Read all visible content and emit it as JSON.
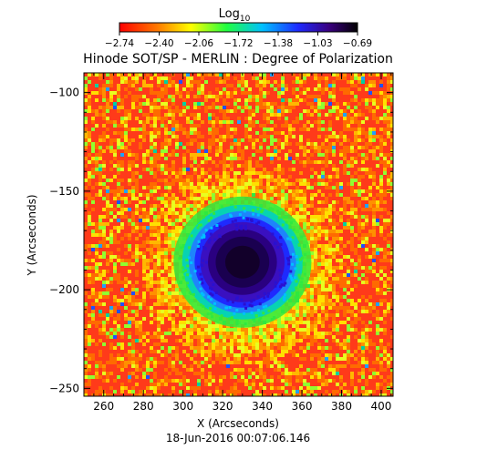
{
  "colorbar": {
    "label": "Log",
    "label_sub": "10",
    "ticks": [
      "-2.74",
      "-2.40",
      "-2.06",
      "-1.72",
      "-1.38",
      "-1.03",
      "-0.69"
    ],
    "range": [
      -2.74,
      -0.69
    ],
    "colormap": "rainbow-red-to-black"
  },
  "chart_data": {
    "type": "heatmap",
    "title": "Hinode SOT/SP - MERLIN : Degree of Polarization",
    "xlabel": "X (Arcseconds)",
    "ylabel": "Y (Arcseconds)",
    "xlim": [
      250,
      406
    ],
    "ylim": [
      -254,
      -90
    ],
    "xticks": [
      "260",
      "280",
      "300",
      "320",
      "340",
      "360",
      "380",
      "400"
    ],
    "yticks": [
      "-100",
      "-150",
      "-200",
      "-250"
    ],
    "sunspot_center": {
      "x": 330,
      "y": -186
    },
    "colors": {
      "background": "#ff3a1a",
      "umbra": "#1a0030",
      "plage": "#2f6dff"
    }
  },
  "timestamp": "18-Jun-2016 00:07:06.146"
}
